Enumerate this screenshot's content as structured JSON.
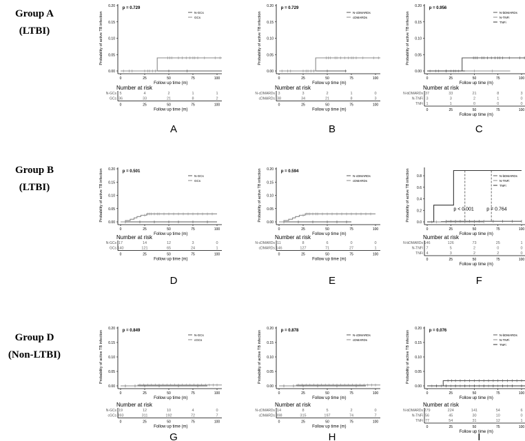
{
  "groups": [
    {
      "name": "Group A",
      "sub": "(LTBI)"
    },
    {
      "name": "Group B",
      "sub": "(LTBI)"
    },
    {
      "name": "Group D",
      "sub": "(Non-LTBI)"
    }
  ],
  "chart_data": [
    {
      "type": "line",
      "panel": "A",
      "p": "p = 0.729",
      "ylabel": "Probability of active TB infection",
      "xlabel": "Follow up time (m)",
      "xticks": [
        0,
        25,
        50,
        75,
        100
      ],
      "yticks": [
        "0.00",
        "0.05",
        "0.10",
        "0.15",
        "0.20"
      ],
      "ylim": [
        0,
        0.2
      ],
      "xlim": [
        0,
        105
      ],
      "risk_title": "Number at risk",
      "series": [
        {
          "name": "N-GCs",
          "steps": [
            [
              0,
              0
            ],
            [
              105,
              0
            ]
          ],
          "censor": [
            50,
            69
          ],
          "risk": [
            5,
            4,
            2,
            1,
            1
          ]
        },
        {
          "name": "GCs",
          "steps": [
            [
              0,
              0
            ],
            [
              38,
              0
            ],
            [
              38,
              0.04
            ],
            [
              105,
              0.04
            ]
          ],
          "censor": [
            3,
            9,
            12,
            25,
            28,
            30,
            33,
            36,
            49,
            51,
            53,
            60,
            64,
            68,
            72,
            75,
            77,
            80,
            87,
            98,
            103
          ],
          "risk": [
            36,
            33,
            21,
            8,
            2
          ]
        }
      ]
    },
    {
      "type": "line",
      "panel": "B",
      "p": "p = 0.729",
      "ylabel": "Probability of active TB infection",
      "xlabel": "Follow up time (m)",
      "xticks": [
        0,
        25,
        50,
        75,
        100
      ],
      "yticks": [
        "0.00",
        "0.05",
        "0.10",
        "0.15",
        "0.20"
      ],
      "ylim": [
        0,
        0.2
      ],
      "xlim": [
        0,
        105
      ],
      "risk_title": "Number at risk",
      "series": [
        {
          "name": "N-cDMARDs",
          "steps": [
            [
              0,
              0
            ],
            [
              70,
              0
            ]
          ],
          "censor": [
            50,
            69
          ],
          "risk": [
            3,
            3,
            2,
            1,
            0
          ]
        },
        {
          "name": "cDMARDs",
          "steps": [
            [
              0,
              0
            ],
            [
              38,
              0
            ],
            [
              38,
              0.04
            ],
            [
              105,
              0.04
            ]
          ],
          "censor": [
            3,
            9,
            12,
            25,
            28,
            30,
            33,
            36,
            49,
            51,
            53,
            58,
            60,
            64,
            68,
            72,
            75,
            77,
            80,
            87,
            98,
            103
          ],
          "risk": [
            38,
            34,
            21,
            8,
            3
          ]
        }
      ]
    },
    {
      "type": "line",
      "panel": "C",
      "p": "p = 0.956",
      "ylabel": "Probability of active TB infection",
      "xlabel": "Follow up time (m)",
      "xticks": [
        0,
        25,
        50,
        75,
        100
      ],
      "yticks": [
        "0.00",
        "0.05",
        "0.10",
        "0.15",
        "0.20"
      ],
      "ylim": [
        0,
        0.2
      ],
      "xlim": [
        0,
        105
      ],
      "risk_title": "Number at risk",
      "series": [
        {
          "name": "N-bDMARDs",
          "steps": [
            [
              0,
              0
            ],
            [
              37,
              0
            ],
            [
              37,
              0.04
            ],
            [
              105,
              0.04
            ]
          ],
          "censor": [
            49,
            51,
            53,
            58,
            60,
            64,
            68,
            72,
            75,
            77,
            80,
            87,
            98,
            103
          ],
          "risk": [
            37,
            33,
            21,
            8,
            3
          ]
        },
        {
          "name": "N-TNFi",
          "steps": [
            [
              0,
              0
            ],
            [
              88,
              0
            ]
          ],
          "censor": [
            3,
            9,
            12,
            25,
            28,
            30,
            33,
            50,
            69
          ],
          "risk": [
            3,
            3,
            2,
            1,
            0
          ]
        },
        {
          "name": "TNFi",
          "steps": [
            [
              0,
              0
            ],
            [
              40,
              0
            ]
          ],
          "censor": [
            20
          ],
          "risk": [
            1,
            1,
            0,
            0,
            0
          ]
        }
      ]
    },
    {
      "type": "line",
      "panel": "D",
      "p": "p = 0.501",
      "ylabel": "Probability of active TB infection",
      "xlabel": "Follow up time (m)",
      "xticks": [
        0,
        25,
        50,
        75,
        100
      ],
      "yticks": [
        "0.00",
        "0.05",
        "0.10",
        "0.15",
        "0.20"
      ],
      "ylim": [
        0,
        0.2
      ],
      "xlim": [
        0,
        105
      ],
      "risk_title": "Number at risk",
      "series": [
        {
          "name": "N-GCs",
          "steps": [
            [
              0,
              0
            ],
            [
              100,
              0
            ]
          ],
          "censor": [
            5,
            20,
            35,
            50,
            60,
            75,
            90
          ],
          "risk": [
            17,
            14,
            12,
            3,
            0
          ]
        },
        {
          "name": "GCs",
          "steps": [
            [
              0,
              0
            ],
            [
              5,
              0
            ],
            [
              5,
              0.005
            ],
            [
              10,
              0.005
            ],
            [
              10,
              0.01
            ],
            [
              14,
              0.01
            ],
            [
              14,
              0.015
            ],
            [
              17,
              0.015
            ],
            [
              17,
              0.02
            ],
            [
              21,
              0.02
            ],
            [
              21,
              0.025
            ],
            [
              27,
              0.025
            ],
            [
              27,
              0.03
            ],
            [
              100,
              0.03
            ]
          ],
          "censor": [
            25,
            28,
            30,
            32,
            35,
            38,
            40,
            45,
            50,
            55,
            60,
            65,
            70,
            75,
            80,
            85,
            90,
            95
          ],
          "risk": [
            140,
            121,
            65,
            24,
            1
          ]
        }
      ]
    },
    {
      "type": "line",
      "panel": "E",
      "p": "p = 0.594",
      "ylabel": "Probability of active TB infection",
      "xlabel": "Follow up time (m)",
      "xticks": [
        0,
        25,
        50,
        75,
        100
      ],
      "yticks": [
        "0.00",
        "0.05",
        "0.10",
        "0.15",
        "0.20"
      ],
      "ylim": [
        0,
        0.2
      ],
      "xlim": [
        0,
        105
      ],
      "risk_title": "Number at risk",
      "series": [
        {
          "name": "N-cDMARDs",
          "steps": [
            [
              0,
              0
            ],
            [
              75,
              0
            ]
          ],
          "censor": [
            5,
            20,
            35,
            50,
            60,
            70
          ],
          "risk": [
            11,
            8,
            6,
            0,
            0
          ]
        },
        {
          "name": "cDMARDs",
          "steps": [
            [
              0,
              0
            ],
            [
              5,
              0
            ],
            [
              5,
              0.005
            ],
            [
              10,
              0.005
            ],
            [
              10,
              0.01
            ],
            [
              14,
              0.01
            ],
            [
              14,
              0.015
            ],
            [
              17,
              0.015
            ],
            [
              17,
              0.02
            ],
            [
              21,
              0.02
            ],
            [
              21,
              0.025
            ],
            [
              27,
              0.025
            ],
            [
              27,
              0.03
            ],
            [
              100,
              0.03
            ]
          ],
          "censor": [
            25,
            28,
            30,
            32,
            35,
            38,
            40,
            45,
            50,
            55,
            60,
            65,
            70,
            75,
            80,
            85,
            90,
            95
          ],
          "risk": [
            146,
            127,
            71,
            27,
            1
          ]
        }
      ]
    },
    {
      "type": "line",
      "panel": "F",
      "p": "p < 0.001",
      "p2": "p = 0.764",
      "ylabel": "Probability of active TB infection",
      "xlabel": "Follow up time (m)",
      "xticks": [
        0,
        25,
        50,
        75,
        100
      ],
      "yticks": [
        "0.0",
        "0.2",
        "0.4",
        "0.6",
        "0.8"
      ],
      "ylim": [
        0,
        0.92
      ],
      "xlim": [
        0,
        105
      ],
      "risk_title": "Number at risk",
      "series": [
        {
          "name": "N-bDMARDs",
          "steps": [
            [
              0,
              0
            ],
            [
              15,
              0
            ],
            [
              15,
              0.005
            ],
            [
              20,
              0.005
            ],
            [
              20,
              0.01
            ],
            [
              100,
              0.01
            ]
          ],
          "censor": [
            20,
            25,
            30,
            35,
            40,
            45,
            50,
            55,
            60,
            70,
            80,
            90,
            100
          ],
          "risk": [
            146,
            126,
            73,
            25,
            1
          ]
        },
        {
          "name": "N-TNFi",
          "steps": [
            [
              0,
              0
            ],
            [
              60,
              0
            ]
          ],
          "censor": [
            5,
            10,
            20,
            30,
            40,
            50,
            60
          ],
          "risk": [
            7,
            5,
            2,
            0,
            0
          ]
        },
        {
          "name": "TNFi",
          "steps": [
            [
              0,
              0
            ],
            [
              7,
              0
            ],
            [
              7,
              0.29
            ],
            [
              28,
              0.29
            ],
            [
              28,
              0.89
            ],
            [
              100,
              0.89
            ]
          ],
          "censor": [],
          "risk": [
            4,
            3,
            2,
            2,
            0
          ]
        }
      ]
    },
    {
      "type": "line",
      "panel": "G",
      "p": "p = 0.849",
      "ylabel": "Probability of active TB infection",
      "xlabel": "Follow up time (m)",
      "xticks": [
        0,
        25,
        50,
        75,
        100
      ],
      "yticks": [
        "0.00",
        "0.05",
        "0.10",
        "0.15",
        "0.20"
      ],
      "ylim": [
        0,
        0.2
      ],
      "xlim": [
        0,
        105
      ],
      "risk_title": "Number at risk",
      "series": [
        {
          "name": "N-GCs",
          "steps": [
            [
              0,
              0
            ],
            [
              90,
              0
            ]
          ],
          "censor": [
            5,
            15,
            25,
            40,
            60,
            80
          ],
          "risk": [
            19,
            12,
            10,
            4,
            0
          ]
        },
        {
          "name": "cGCs",
          "steps": [
            [
              0,
              0
            ],
            [
              18,
              0
            ],
            [
              18,
              0.003
            ],
            [
              105,
              0.003
            ]
          ],
          "censor": [
            20,
            24,
            28,
            32,
            36,
            40,
            44,
            48,
            52,
            56,
            60,
            64,
            68,
            72,
            76,
            80,
            84,
            88,
            92,
            96,
            100
          ],
          "risk": [
            393,
            311,
            192,
            72,
            7
          ]
        }
      ]
    },
    {
      "type": "line",
      "panel": "H",
      "p": "p = 0.878",
      "ylabel": "Probability of active TB infection",
      "xlabel": "Follow up time (m)",
      "xticks": [
        0,
        25,
        50,
        75,
        100
      ],
      "yticks": [
        "0.00",
        "0.05",
        "0.10",
        "0.15",
        "0.20"
      ],
      "ylim": [
        0,
        0.2
      ],
      "xlim": [
        0,
        105
      ],
      "risk_title": "Number at risk",
      "series": [
        {
          "name": "N-cDMARDs",
          "steps": [
            [
              0,
              0
            ],
            [
              90,
              0
            ]
          ],
          "censor": [
            5,
            15,
            25,
            40,
            60,
            80
          ],
          "risk": [
            14,
            8,
            5,
            2,
            0
          ]
        },
        {
          "name": "cDMARDs",
          "steps": [
            [
              0,
              0
            ],
            [
              18,
              0
            ],
            [
              18,
              0.003
            ],
            [
              105,
              0.003
            ]
          ],
          "censor": [
            20,
            24,
            28,
            32,
            36,
            40,
            44,
            48,
            52,
            56,
            60,
            64,
            68,
            72,
            76,
            80,
            84,
            88,
            92,
            96,
            100
          ],
          "risk": [
            398,
            315,
            197,
            74,
            7
          ]
        }
      ]
    },
    {
      "type": "line",
      "panel": "I",
      "p": "p = 0.076",
      "ylabel": "Probability of active TB infection",
      "xlabel": "Follow up time (m)",
      "xticks": [
        0,
        25,
        50,
        75,
        100
      ],
      "yticks": [
        "0.00",
        "0.05",
        "0.10",
        "0.15",
        "0.20"
      ],
      "ylim": [
        0,
        0.2
      ],
      "xlim": [
        0,
        105
      ],
      "risk_title": "Number at risk",
      "series": [
        {
          "name": "N-bDMARDs",
          "steps": [
            [
              0,
              0
            ],
            [
              17,
              0
            ],
            [
              17,
              0.018
            ],
            [
              105,
              0.018
            ]
          ],
          "censor": [
            22,
            26,
            30,
            35,
            40,
            45,
            50,
            55,
            60,
            65,
            70,
            75,
            80,
            85,
            90,
            95,
            100
          ],
          "risk": [
            279,
            224,
            141,
            54,
            6
          ]
        },
        {
          "name": "N-TNFi",
          "steps": [
            [
              0,
              0
            ],
            [
              95,
              0
            ]
          ],
          "censor": [
            5,
            15,
            25,
            35,
            45,
            55,
            65,
            75,
            85
          ],
          "risk": [
            56,
            45,
            30,
            10,
            0
          ]
        },
        {
          "name": "TNFi",
          "steps": [
            [
              0,
              0
            ],
            [
              105,
              0
            ]
          ],
          "censor": [
            10,
            20,
            30,
            40,
            50,
            60,
            70,
            80,
            90,
            100
          ],
          "risk": [
            77,
            54,
            31,
            12,
            1
          ]
        }
      ]
    }
  ]
}
